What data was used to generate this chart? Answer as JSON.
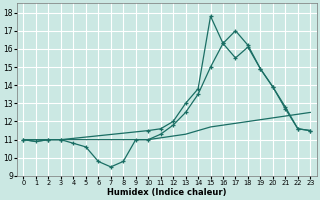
{
  "xlabel": "Humidex (Indice chaleur)",
  "xlim": [
    -0.5,
    23.5
  ],
  "ylim": [
    9,
    18.5
  ],
  "xticks": [
    0,
    1,
    2,
    3,
    4,
    5,
    6,
    7,
    8,
    9,
    10,
    11,
    12,
    13,
    14,
    15,
    16,
    17,
    18,
    19,
    20,
    21,
    22,
    23
  ],
  "yticks": [
    9,
    10,
    11,
    12,
    13,
    14,
    15,
    16,
    17,
    18
  ],
  "bg_color": "#cbe8e3",
  "grid_color": "#ffffff",
  "line_color": "#1a6e64",
  "line1_x": [
    0,
    1,
    2,
    3,
    4,
    5,
    6,
    7,
    8,
    9,
    10,
    11,
    12,
    13,
    14,
    15,
    16,
    17,
    18,
    19,
    20,
    21,
    22,
    23
  ],
  "line1_y": [
    11.0,
    10.9,
    11.0,
    11.0,
    11.0,
    11.0,
    11.0,
    11.0,
    11.0,
    11.0,
    11.0,
    11.1,
    11.2,
    11.3,
    11.5,
    11.7,
    11.8,
    11.9,
    12.0,
    12.1,
    12.2,
    12.3,
    12.4,
    12.5
  ],
  "line2_x": [
    0,
    1,
    2,
    3,
    4,
    5,
    6,
    7,
    8,
    9,
    10,
    11,
    12,
    13,
    14,
    15,
    16,
    17,
    18,
    19,
    20,
    21,
    22,
    23
  ],
  "line2_y": [
    11.0,
    10.9,
    11.0,
    11.0,
    10.8,
    10.6,
    9.8,
    9.5,
    9.8,
    11.0,
    11.0,
    11.3,
    11.8,
    12.5,
    13.5,
    15.0,
    16.3,
    15.5,
    16.1,
    14.9,
    13.9,
    12.7,
    11.6,
    11.5
  ],
  "line3_x": [
    0,
    2,
    3,
    10,
    11,
    12,
    13,
    14,
    15,
    16,
    17,
    18,
    19,
    20,
    21,
    22,
    23
  ],
  "line3_y": [
    11.0,
    11.0,
    11.0,
    11.5,
    11.6,
    12.0,
    13.0,
    13.8,
    17.8,
    16.3,
    17.0,
    16.2,
    14.9,
    13.9,
    12.8,
    11.6,
    11.5
  ]
}
